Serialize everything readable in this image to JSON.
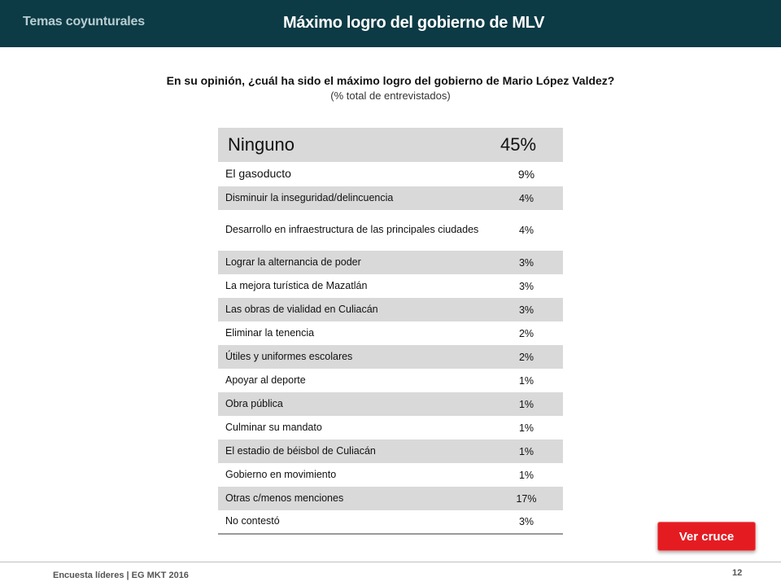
{
  "header": {
    "section_tag": "Temas coyunturales",
    "title": "Máximo logro del gobierno de MLV"
  },
  "question": "En su opinión, ¿cuál ha sido el máximo logro del gobierno de Mario López Valdez?",
  "subtitle": "(% total de entrevistados)",
  "table": {
    "rows": [
      {
        "label": "Ninguno",
        "value": "45%"
      },
      {
        "label": "El gasoducto",
        "value": "9%"
      },
      {
        "label": "Disminuir la inseguridad/delincuencia",
        "value": "4%"
      },
      {
        "label": "Desarrollo en infraestructura de las principales ciudades",
        "value": "4%"
      },
      {
        "label": "Lograr la alternancia de poder",
        "value": "3%"
      },
      {
        "label": "La mejora turística de Mazatlán",
        "value": "3%"
      },
      {
        "label": "Las obras de vialidad en Culiacán",
        "value": "3%"
      },
      {
        "label": "Eliminar la tenencia",
        "value": "2%"
      },
      {
        "label": "Útiles y uniformes escolares",
        "value": "2%"
      },
      {
        "label": "Apoyar al deporte",
        "value": "1%"
      },
      {
        "label": "Obra pública",
        "value": "1%"
      },
      {
        "label": "Culminar su mandato",
        "value": "1%"
      },
      {
        "label": "El estadio de béisbol de Culiacán",
        "value": "1%"
      },
      {
        "label": "Gobierno en movimiento",
        "value": "1%"
      },
      {
        "label": "Otras c/menos menciones",
        "value": "17%"
      },
      {
        "label": "No contestó",
        "value": "3%"
      }
    ]
  },
  "cta": {
    "label": "Ver cruce"
  },
  "footer": {
    "text": "Encuesta líderes | EG MKT 2016",
    "page_number": "12"
  },
  "colors": {
    "header_bg": "#0c3b45",
    "button_bg": "#e41c22",
    "row_shade": "#d9d9d9"
  }
}
